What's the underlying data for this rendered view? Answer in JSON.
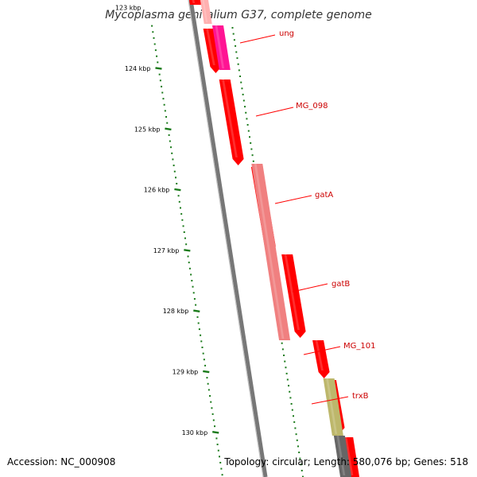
{
  "title": "Mycoplasma genitalium G37, complete genome",
  "footer": {
    "accession": "Accession: NC_000908",
    "topology": "Topology: circular; Length: 580,076 bp; Genes: 518"
  },
  "ruler": {
    "color": "#1a7a1a",
    "labels": [
      "123 kbp",
      "124 kbp",
      "125 kbp",
      "126 kbp",
      "127 kbp",
      "128 kbp",
      "129 kbp",
      "130 kbp"
    ]
  },
  "genes": [
    {
      "name": "ung",
      "color": "#ff1493"
    },
    {
      "name": "MG_098",
      "color": "#ff0000"
    },
    {
      "name": "gatA",
      "color": "#f08080"
    },
    {
      "name": "gatB",
      "color": "#ff0000"
    },
    {
      "name": "MG_101",
      "color": "#ff0000"
    },
    {
      "name": "trxB",
      "color": "#bdb76b"
    }
  ],
  "colors": {
    "backbone": "#777777",
    "forward_gene": "#ff0000",
    "label_line": "#ff0000"
  }
}
